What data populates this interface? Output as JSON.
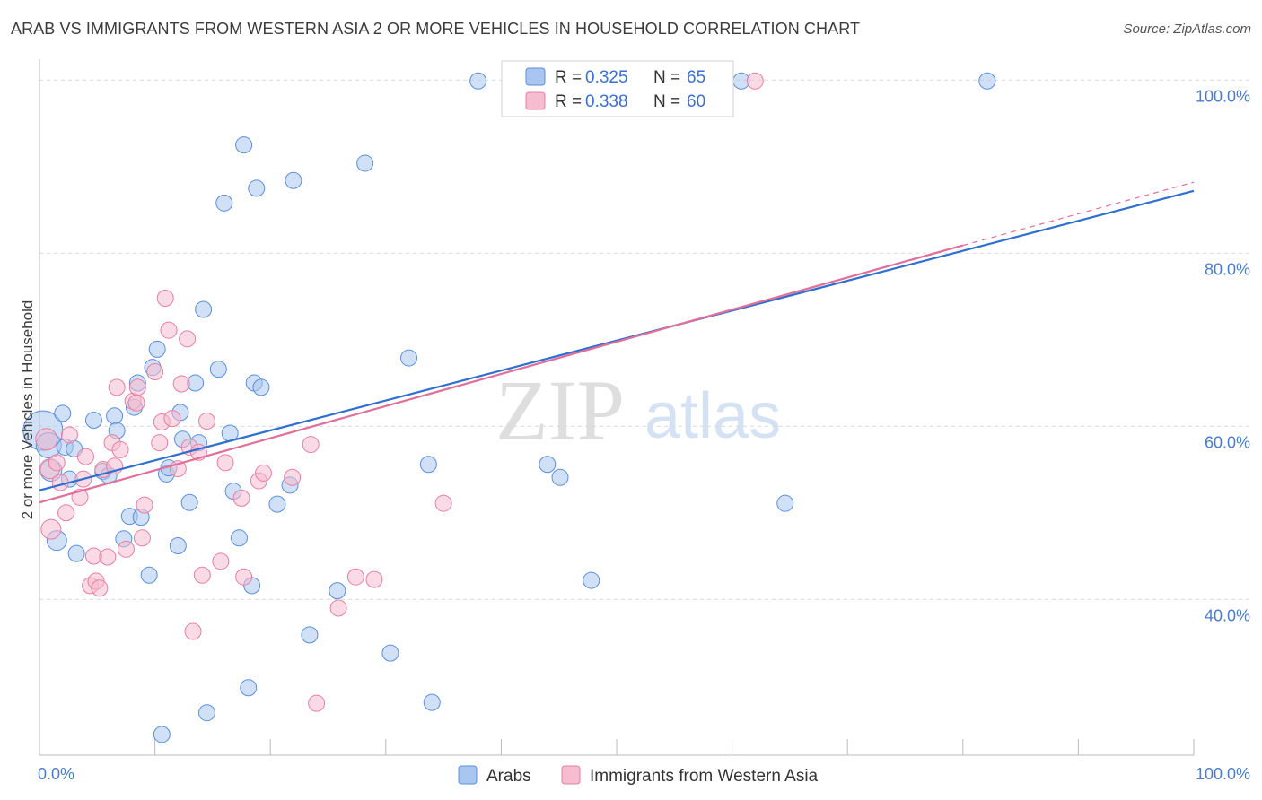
{
  "title": "ARAB VS IMMIGRANTS FROM WESTERN ASIA 2 OR MORE VEHICLES IN HOUSEHOLD CORRELATION CHART",
  "source": "Source: ZipAtlas.com",
  "watermark": {
    "zip": "ZIP",
    "atlas": "atlas"
  },
  "legend": {
    "rows": [
      {
        "r_label": "R =",
        "r_value": "0.325",
        "n_label": "N =",
        "n_value": "65"
      },
      {
        "r_label": "R =",
        "r_value": "0.338",
        "n_label": "N =",
        "n_value": "60"
      }
    ]
  },
  "colors": {
    "blue_fill": "#a9c6f0",
    "blue_stroke": "#5b8fd9",
    "blue_line": "#2f6fd0",
    "pink_fill": "#f6bccf",
    "pink_stroke": "#e6809f",
    "pink_line": "#e0709a",
    "grid": "#d9d9d9",
    "tick_text": "#4a7bd0"
  },
  "chart_data": {
    "type": "scatter",
    "xlabel": "",
    "ylabel": "2 or more Vehicles in Household",
    "xlim": [
      0,
      100
    ],
    "ylim": [
      22,
      102
    ],
    "x_tick_labels": [
      "0.0%",
      "100.0%"
    ],
    "y_ticks": [
      40,
      60,
      80,
      100
    ],
    "y_tick_labels": [
      "40.0%",
      "60.0%",
      "80.0%",
      "100.0%"
    ],
    "grid": true,
    "legend_position": "top-center",
    "series": [
      {
        "name": "Arabs",
        "color": "blue",
        "trend": {
          "x0": 0,
          "y0": 52.6,
          "x1": 100,
          "y1": 87.2
        },
        "points": [
          [
            0.3,
            59.5,
            22
          ],
          [
            0.8,
            57.8,
            14
          ],
          [
            1.0,
            54.9,
            12
          ],
          [
            1.5,
            46.8,
            11
          ],
          [
            2.0,
            61.5,
            9
          ],
          [
            2.2,
            57.6,
            9
          ],
          [
            2.6,
            53.9,
            9
          ],
          [
            3.0,
            57.4,
            9
          ],
          [
            3.2,
            45.3,
            9
          ],
          [
            4.7,
            60.7,
            9
          ],
          [
            5.5,
            54.8,
            9
          ],
          [
            6.0,
            54.3,
            9
          ],
          [
            6.5,
            61.2,
            9
          ],
          [
            6.7,
            59.5,
            9
          ],
          [
            7.3,
            47.0,
            9
          ],
          [
            7.8,
            49.6,
            9
          ],
          [
            8.2,
            62.2,
            9
          ],
          [
            8.5,
            65.0,
            9
          ],
          [
            8.8,
            49.5,
            9
          ],
          [
            9.5,
            42.8,
            9
          ],
          [
            9.8,
            66.8,
            9
          ],
          [
            10.2,
            68.9,
            9
          ],
          [
            10.6,
            24.4,
            9
          ],
          [
            11.0,
            54.5,
            9
          ],
          [
            11.2,
            55.2,
            9
          ],
          [
            12.0,
            46.2,
            9
          ],
          [
            12.2,
            61.6,
            9
          ],
          [
            12.4,
            58.5,
            9
          ],
          [
            13.0,
            51.2,
            9
          ],
          [
            13.5,
            65.0,
            9
          ],
          [
            13.8,
            58.1,
            9
          ],
          [
            14.2,
            73.5,
            9
          ],
          [
            14.5,
            26.9,
            9
          ],
          [
            15.5,
            66.6,
            9
          ],
          [
            16.0,
            85.8,
            9
          ],
          [
            16.5,
            59.2,
            9
          ],
          [
            16.8,
            52.5,
            9
          ],
          [
            17.3,
            47.1,
            9
          ],
          [
            17.7,
            92.5,
            9
          ],
          [
            18.1,
            29.8,
            9
          ],
          [
            18.4,
            41.6,
            9
          ],
          [
            18.6,
            65.0,
            9
          ],
          [
            18.8,
            87.5,
            9
          ],
          [
            19.2,
            64.5,
            9
          ],
          [
            20.6,
            51.0,
            9
          ],
          [
            21.7,
            53.2,
            9
          ],
          [
            22.0,
            88.4,
            9
          ],
          [
            23.4,
            35.9,
            9
          ],
          [
            25.8,
            41.0,
            9
          ],
          [
            28.2,
            90.4,
            9
          ],
          [
            30.4,
            33.8,
            9
          ],
          [
            32.0,
            67.9,
            9
          ],
          [
            33.7,
            55.6,
            9
          ],
          [
            34.0,
            28.1,
            9
          ],
          [
            38.0,
            99.9,
            9
          ],
          [
            44.0,
            55.6,
            9
          ],
          [
            45.1,
            54.1,
            9
          ],
          [
            47.2,
            99.9,
            9
          ],
          [
            47.8,
            42.2,
            9
          ],
          [
            60.8,
            99.9,
            9
          ],
          [
            64.6,
            51.1,
            9
          ],
          [
            82.1,
            99.9,
            9
          ]
        ]
      },
      {
        "name": "Immigrants from Western Asia",
        "color": "pink",
        "trend": {
          "x0": 0,
          "y0": 51.2,
          "x1": 80,
          "y1": 80.9,
          "dash_x1": 100,
          "dash_y1": 88.2
        },
        "points": [
          [
            0.6,
            58.5,
            12
          ],
          [
            0.9,
            55.1,
            11
          ],
          [
            1.0,
            48.1,
            11
          ],
          [
            1.5,
            55.8,
            9
          ],
          [
            1.8,
            53.5,
            9
          ],
          [
            2.3,
            50.0,
            9
          ],
          [
            2.6,
            59.0,
            9
          ],
          [
            3.5,
            51.8,
            9
          ],
          [
            3.8,
            53.9,
            9
          ],
          [
            4.0,
            56.5,
            9
          ],
          [
            4.4,
            41.6,
            9
          ],
          [
            4.7,
            45.0,
            9
          ],
          [
            4.9,
            42.1,
            9
          ],
          [
            5.2,
            41.3,
            9
          ],
          [
            5.5,
            55.0,
            9
          ],
          [
            5.9,
            44.9,
            9
          ],
          [
            6.3,
            58.1,
            9
          ],
          [
            6.5,
            55.4,
            9
          ],
          [
            6.7,
            64.5,
            9
          ],
          [
            7.0,
            57.3,
            9
          ],
          [
            7.5,
            45.8,
            9
          ],
          [
            8.1,
            62.9,
            9
          ],
          [
            8.4,
            62.7,
            9
          ],
          [
            8.5,
            64.5,
            9
          ],
          [
            8.9,
            47.1,
            9
          ],
          [
            9.1,
            50.9,
            9
          ],
          [
            10.0,
            66.3,
            9
          ],
          [
            10.4,
            58.1,
            9
          ],
          [
            10.6,
            60.5,
            9
          ],
          [
            10.9,
            74.8,
            9
          ],
          [
            11.2,
            71.1,
            9
          ],
          [
            11.5,
            60.9,
            9
          ],
          [
            12.0,
            55.1,
            9
          ],
          [
            12.3,
            64.9,
            9
          ],
          [
            12.8,
            70.1,
            9
          ],
          [
            13.0,
            57.6,
            9
          ],
          [
            13.3,
            36.3,
            9
          ],
          [
            13.8,
            57.0,
            9
          ],
          [
            14.1,
            42.8,
            9
          ],
          [
            14.5,
            60.6,
            9
          ],
          [
            15.7,
            44.4,
            9
          ],
          [
            16.1,
            55.8,
            9
          ],
          [
            17.5,
            51.7,
            9
          ],
          [
            17.7,
            42.6,
            9
          ],
          [
            19.0,
            53.7,
            9
          ],
          [
            19.4,
            54.6,
            9
          ],
          [
            21.9,
            54.1,
            9
          ],
          [
            23.5,
            57.9,
            9
          ],
          [
            24.0,
            28.0,
            9
          ],
          [
            25.9,
            39.0,
            9
          ],
          [
            27.4,
            42.6,
            9
          ],
          [
            29.0,
            42.3,
            9
          ],
          [
            35.0,
            51.1,
            9
          ],
          [
            62.0,
            99.9,
            9
          ]
        ]
      }
    ]
  },
  "bottom_legend": [
    {
      "label": "Arabs",
      "color": "blue"
    },
    {
      "label": "Immigrants from Western Asia",
      "color": "pink"
    }
  ]
}
